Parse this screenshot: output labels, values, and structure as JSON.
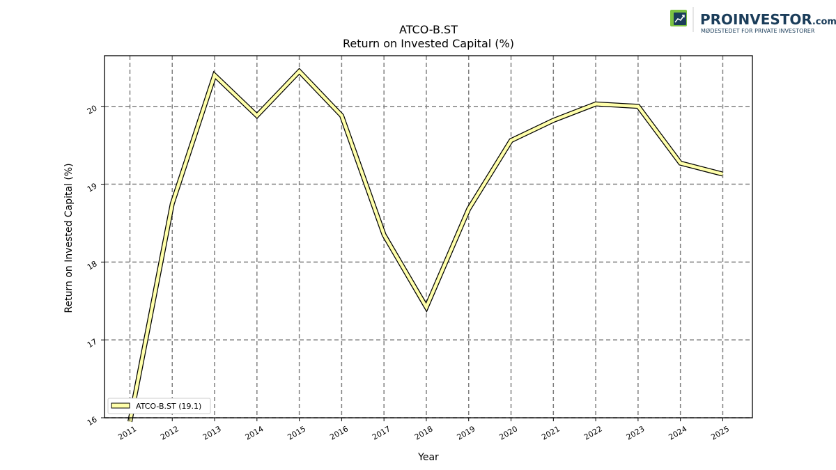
{
  "brand": {
    "name": "PROINVESTOR",
    "suffix": ".com",
    "tagline": "MØDESTEDET FOR PRIVATE INVESTORER",
    "color_dark": "#1b3d5a",
    "color_green": "#7cc242",
    "icon": "chart-logo-icon"
  },
  "chart_data": {
    "type": "line",
    "title": "ATCO-B.ST",
    "subtitle": "Return on Invested Capital (%)",
    "xlabel": "Year",
    "ylabel": "Return on Invested Capital (%)",
    "x": [
      2011,
      2012,
      2013,
      2014,
      2015,
      2016,
      2017,
      2018,
      2019,
      2020,
      2021,
      2022,
      2023,
      2024,
      2025
    ],
    "xlim": [
      2010.4,
      2025.7
    ],
    "ylim": [
      16.0,
      20.65
    ],
    "yticks": [
      16,
      17,
      18,
      19,
      20
    ],
    "grid": true,
    "legend_position": "lower-left",
    "series": [
      {
        "name": "ATCO-B.ST (19.1)",
        "color": "#ffffaa",
        "edge_color": "#000000",
        "values": [
          15.95,
          18.75,
          20.4,
          19.88,
          20.45,
          19.88,
          18.35,
          17.42,
          18.68,
          19.56,
          19.82,
          20.03,
          20.0,
          19.27,
          19.13
        ]
      }
    ]
  }
}
